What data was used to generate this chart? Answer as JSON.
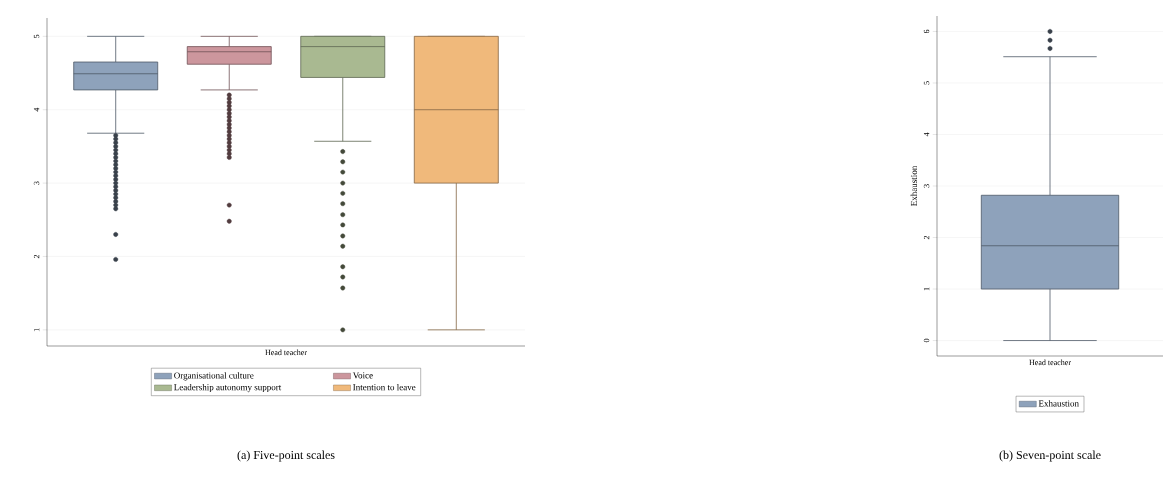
{
  "chart_data": [
    {
      "type": "box",
      "title": "(a) Five-point scales",
      "categories": [
        "Head teacher"
      ],
      "ylim": [
        0.78,
        5.25
      ],
      "yticks": [
        1,
        2,
        3,
        4,
        5
      ],
      "grid": "y",
      "legend": "bottom",
      "series": [
        {
          "name": "Organisational culture",
          "color": "#8ea2bb",
          "boxes": [
            {
              "low": 3.68,
              "q1": 4.27,
              "median": 4.49,
              "q3": 4.65,
              "high": 5,
              "outliers": [
                3.65,
                3.6,
                3.55,
                3.5,
                3.45,
                3.4,
                3.35,
                3.3,
                3.25,
                3.2,
                3.15,
                3.1,
                3.05,
                3.0,
                2.95,
                2.9,
                2.85,
                2.8,
                2.75,
                2.7,
                2.65,
                2.3,
                1.96
              ]
            }
          ]
        },
        {
          "name": "Voice",
          "color": "#cc969d",
          "boxes": [
            {
              "low": 4.27,
              "q1": 4.62,
              "median": 4.79,
              "q3": 4.86,
              "high": 5,
              "outliers": [
                4.2,
                4.15,
                4.1,
                4.05,
                4.0,
                3.95,
                3.9,
                3.85,
                3.8,
                3.75,
                3.7,
                3.65,
                3.6,
                3.55,
                3.5,
                3.45,
                3.4,
                3.35,
                2.7,
                2.48
              ]
            }
          ]
        },
        {
          "name": "Leadership autonomy support",
          "color": "#a9b991",
          "boxes": [
            {
              "low": 3.57,
              "q1": 4.44,
              "median": 4.86,
              "q3": 5,
              "high": 5,
              "outliers": [
                3.43,
                3.29,
                3.15,
                3.0,
                2.86,
                2.72,
                2.57,
                2.43,
                2.28,
                2.14,
                1.86,
                1.72,
                1.57,
                1.0
              ]
            }
          ]
        },
        {
          "name": "Intention to leave",
          "color": "#f0b97b",
          "boxes": [
            {
              "low": 1,
              "q1": 3,
              "median": 4,
              "q3": 5,
              "high": 5
            }
          ]
        }
      ]
    },
    {
      "type": "box",
      "title": "(b) Seven-point scale",
      "ylabel": "Exhaustion",
      "categories": [
        "Head teacher"
      ],
      "ylim": [
        -0.3,
        6.3
      ],
      "yticks": [
        0,
        1,
        2,
        3,
        4,
        5,
        6
      ],
      "grid": "y",
      "legend": "bottom",
      "series": [
        {
          "name": "Exhaustion",
          "color": "#8ea2bb",
          "boxes": [
            {
              "low": 0,
              "q1": 1.0,
              "median": 1.84,
              "q3": 2.82,
              "high": 5.51,
              "outliers": [
                5.67,
                5.83,
                6.0
              ]
            }
          ]
        }
      ]
    }
  ]
}
